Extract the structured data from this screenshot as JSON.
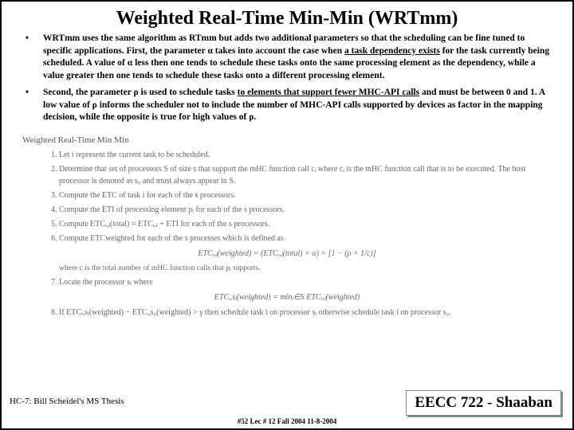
{
  "title": "Weighted Real-Time Min-Min (WRTmm)",
  "bullet1_pre": "WRTmm uses the same algorithm as RTmm but adds two additional parameters so that the scheduling can be fine tuned to specific applications.  First, the parameter ",
  "bullet1_alpha1": "α",
  "bullet1_mid1": " takes into account the case when ",
  "bullet1_u1": "a task dependency exists",
  "bullet1_mid2": " for the task  currently being scheduled.  A value of ",
  "bullet1_alpha2": "α",
  "bullet1_post": "  less then one tends to schedule these tasks onto the same processing element as the dependency, while a value greater then one tends to schedule these tasks onto a different processing element.",
  "bullet2_pre": "Second, the parameter ",
  "bullet2_rho1": "ρ",
  "bullet2_mid1": " is used to schedule tasks  ",
  "bullet2_u1": "to elements that support fewer MHC-API calls",
  "bullet2_mid2": "  and must be between 0 and 1.  A low value of ",
  "bullet2_rho2": "ρ",
  "bullet2_post": "  informs the scheduler not to include the number of MHC-API  calls  supported by devices as factor  in the mapping decision, while the opposite is true for high values of ",
  "bullet2_rho3": "ρ",
  "bullet2_end": ".",
  "algo_title": "Weighted Real-Time Min Min",
  "step1": "Let i represent the current task to be scheduled.",
  "step2": "Determine that set of processors S of size s that support the mHC function call cᵢ where cᵢ is the mHC function call that is to be executed. The host processor is denoted as s₀ and must always appear in S.",
  "step3": "Compute the ETC of task i for each of the s processors.",
  "step4": "Compute the ETI of processing element pⱼ for each of the s processors.",
  "step5": "Compute ETCᵢ,ⱼ(total) = ETCᵢ,ⱼ + ETI for each of the s processors.",
  "step6": "Compute ETCweighted for each of the s processes which is defined as",
  "formula1": "ETCᵢ,ⱼ(weighted) = (ETCᵢ,ⱼ(total) × α) × [1 − (ρ × 1/c)]",
  "note1": "where c is the total number of mHC function calls that pⱼ supports.",
  "step7": "Locate the processor sⱼ where",
  "formula2": "ETCᵢ,sⱼ(weighted) = minⱼ∈S ETCᵢ,ⱼ(weighted)",
  "step8": "If ETCᵢ,sⱼ(weighted) − ETCᵢ,s₀(weighted) > γ then schedule task i on processor sⱼ otherwise schedule task i on processor s₀.",
  "footer_left": "HC-7: Bill Scheidel's MS Thesis",
  "footer_right": "EECC 722 - Shaaban",
  "footer_center": "#52   Lec # 12   Fall 2004  11-8-2004"
}
